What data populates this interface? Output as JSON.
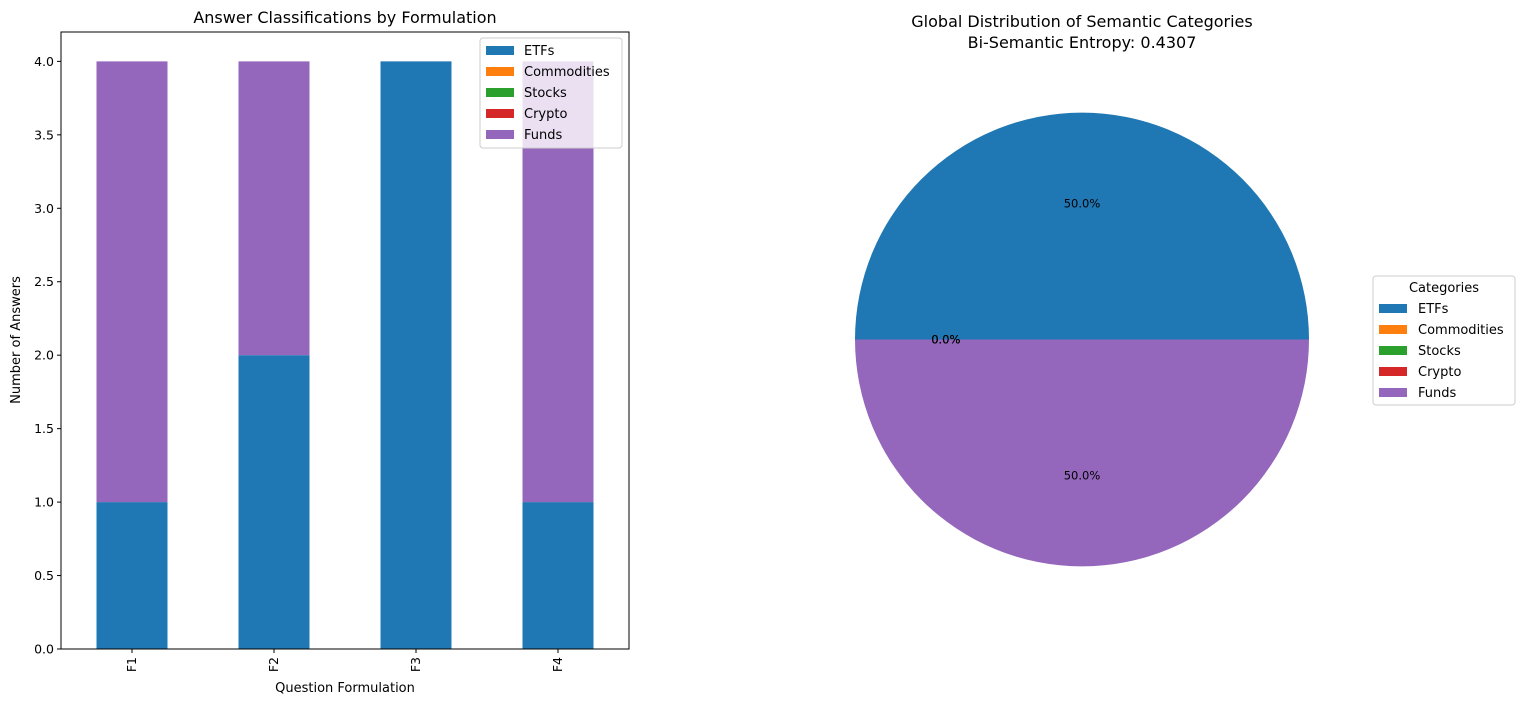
{
  "chart_data": [
    {
      "type": "bar",
      "stacked": true,
      "title": "Answer Classifications by Formulation",
      "xlabel": "Question Formulation",
      "ylabel": "Number of Answers",
      "categories": [
        "F1",
        "F2",
        "F3",
        "F4"
      ],
      "ylim": [
        0,
        4.2
      ],
      "yticks": [
        "0.0",
        "0.5",
        "1.0",
        "1.5",
        "2.0",
        "2.5",
        "3.0",
        "3.5",
        "4.0"
      ],
      "series": [
        {
          "name": "ETFs",
          "color": "#1f77b4",
          "values": [
            1,
            2,
            4,
            1
          ]
        },
        {
          "name": "Commodities",
          "color": "#ff7f0e",
          "values": [
            0,
            0,
            0,
            0
          ]
        },
        {
          "name": "Stocks",
          "color": "#2ca02c",
          "values": [
            0,
            0,
            0,
            0
          ]
        },
        {
          "name": "Crypto",
          "color": "#d62728",
          "values": [
            0,
            0,
            0,
            0
          ]
        },
        {
          "name": "Funds",
          "color": "#9467bd",
          "values": [
            3,
            2,
            0,
            3
          ]
        }
      ],
      "legend_position": "upper right",
      "grid": false
    },
    {
      "type": "pie",
      "title": "Global Distribution of Semantic Categories",
      "subtitle": "Bi-Semantic Entropy: 0.4307",
      "legend_title": "Categories",
      "legend_position": "center right",
      "slices": [
        {
          "name": "ETFs",
          "color": "#1f77b4",
          "value": 50.0,
          "label": "50.0%"
        },
        {
          "name": "Commodities",
          "color": "#ff7f0e",
          "value": 0.0,
          "label": "0.0%"
        },
        {
          "name": "Stocks",
          "color": "#2ca02c",
          "value": 0.0,
          "label": "0.0%"
        },
        {
          "name": "Crypto",
          "color": "#d62728",
          "value": 0.0,
          "label": "0.0%"
        },
        {
          "name": "Funds",
          "color": "#9467bd",
          "value": 50.0,
          "label": "50.0%"
        }
      ]
    }
  ]
}
